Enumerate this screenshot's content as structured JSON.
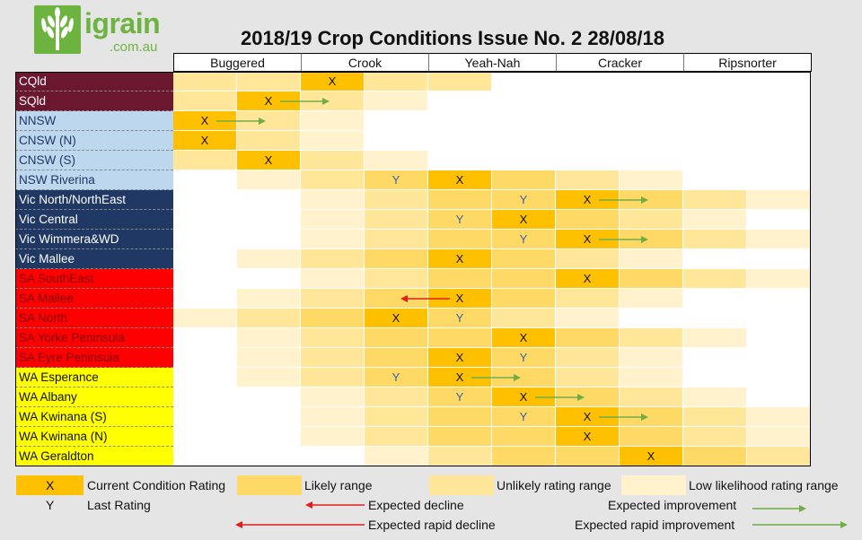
{
  "logo": {
    "name": "igrain",
    "sub": ".com.au"
  },
  "chart_data": {
    "type": "table",
    "title": "2018/19 Crop Conditions Issue No. 2 28/08/18",
    "categories": [
      "Buggered",
      "Crook",
      "Yeah-Nah",
      "Cracker",
      "Ripsnorter"
    ],
    "subcolumns_per_category": 2,
    "shade_levels": {
      "0": "none",
      "1": "Low likelihood rating range",
      "2": "Unlikely rating range",
      "3": "Likely range",
      "4": "Current Condition Rating"
    },
    "rows": [
      {
        "region": "CQld",
        "group": "QLD",
        "shades": [
          2,
          2,
          4,
          2,
          2,
          0,
          0,
          0,
          0,
          0
        ],
        "current": 2,
        "last": null,
        "arrow": null
      },
      {
        "region": "SQld",
        "group": "QLD",
        "shades": [
          2,
          4,
          2,
          1,
          0,
          0,
          0,
          0,
          0,
          0
        ],
        "current": 1,
        "last": null,
        "arrow": {
          "type": "improvement",
          "from": 1,
          "to": 2
        }
      },
      {
        "region": "NNSW",
        "group": "NSW",
        "shades": [
          4,
          2,
          1,
          0,
          0,
          0,
          0,
          0,
          0,
          0
        ],
        "current": 0,
        "last": null,
        "arrow": {
          "type": "improvement",
          "from": 0,
          "to": 1
        }
      },
      {
        "region": "CNSW (N)",
        "group": "NSW",
        "shades": [
          4,
          2,
          1,
          0,
          0,
          0,
          0,
          0,
          0,
          0
        ],
        "current": 0,
        "last": null,
        "arrow": null
      },
      {
        "region": "CNSW (S)",
        "group": "NSW",
        "shades": [
          2,
          4,
          2,
          1,
          0,
          0,
          0,
          0,
          0,
          0
        ],
        "current": 1,
        "last": null,
        "arrow": null
      },
      {
        "region": "NSW Riverina",
        "group": "NSW",
        "shades": [
          0,
          1,
          2,
          3,
          4,
          3,
          2,
          1,
          0,
          0
        ],
        "current": 4,
        "last": 3,
        "arrow": null
      },
      {
        "region": "Vic North/NorthEast",
        "group": "VIC",
        "shades": [
          0,
          0,
          1,
          2,
          3,
          3,
          4,
          3,
          2,
          1
        ],
        "current": 6,
        "last": 5,
        "arrow": {
          "type": "improvement",
          "from": 6,
          "to": 7
        }
      },
      {
        "region": "Vic Central",
        "group": "VIC",
        "shades": [
          0,
          0,
          1,
          2,
          3,
          4,
          3,
          2,
          1,
          0
        ],
        "current": 5,
        "last": 4,
        "arrow": null
      },
      {
        "region": "Vic Wimmera&WD",
        "group": "VIC",
        "shades": [
          0,
          0,
          1,
          2,
          3,
          3,
          4,
          3,
          2,
          1
        ],
        "current": 6,
        "last": 5,
        "arrow": {
          "type": "improvement",
          "from": 6,
          "to": 7
        }
      },
      {
        "region": "Vic Mallee",
        "group": "VIC",
        "shades": [
          0,
          1,
          2,
          3,
          4,
          3,
          2,
          1,
          0,
          0
        ],
        "current": 4,
        "last": null,
        "arrow": null
      },
      {
        "region": "SA SouthEast",
        "group": "SA",
        "shades": [
          0,
          0,
          1,
          2,
          3,
          3,
          4,
          3,
          2,
          1
        ],
        "current": 6,
        "last": null,
        "arrow": null
      },
      {
        "region": "SA Mallee",
        "group": "SA",
        "shades": [
          0,
          1,
          2,
          3,
          4,
          3,
          2,
          1,
          0,
          0
        ],
        "current": 4,
        "last": null,
        "arrow": {
          "type": "decline",
          "from": 4,
          "to": 3
        }
      },
      {
        "region": "SA North",
        "group": "SA",
        "shades": [
          1,
          2,
          3,
          4,
          3,
          2,
          1,
          0,
          0,
          0
        ],
        "current": 3,
        "last": 4,
        "arrow": null
      },
      {
        "region": "SA Yorke Peninsula",
        "group": "SA",
        "shades": [
          0,
          1,
          2,
          3,
          3,
          4,
          3,
          2,
          1,
          0
        ],
        "current": 5,
        "last": null,
        "arrow": null
      },
      {
        "region": "SA Eyre Peninsula",
        "group": "SA",
        "shades": [
          0,
          1,
          2,
          3,
          4,
          3,
          2,
          1,
          0,
          0
        ],
        "current": 4,
        "last": 5,
        "arrow": null
      },
      {
        "region": "WA Esperance",
        "group": "WA",
        "shades": [
          0,
          1,
          2,
          3,
          4,
          3,
          2,
          1,
          0,
          0
        ],
        "current": 4,
        "last": 3,
        "arrow": {
          "type": "improvement",
          "from": 4,
          "to": 5
        }
      },
      {
        "region": "WA Albany",
        "group": "WA",
        "shades": [
          0,
          0,
          1,
          2,
          3,
          4,
          3,
          2,
          1,
          0
        ],
        "current": 5,
        "last": 4,
        "arrow": {
          "type": "improvement",
          "from": 5,
          "to": 6
        }
      },
      {
        "region": "WA Kwinana (S)",
        "group": "WA",
        "shades": [
          0,
          0,
          1,
          2,
          3,
          3,
          4,
          3,
          2,
          1
        ],
        "current": 6,
        "last": 5,
        "arrow": {
          "type": "improvement",
          "from": 6,
          "to": 7
        }
      },
      {
        "region": "WA Kwinana (N)",
        "group": "WA",
        "shades": [
          0,
          0,
          1,
          2,
          3,
          3,
          4,
          3,
          2,
          1
        ],
        "current": 6,
        "last": null,
        "arrow": null
      },
      {
        "region": "WA Geraldton",
        "group": "WA",
        "shades": [
          0,
          0,
          0,
          1,
          2,
          3,
          3,
          4,
          3,
          2
        ],
        "current": 7,
        "last": null,
        "arrow": null
      }
    ],
    "group_colors": {
      "QLD": "#6b1730",
      "NSW": "#bdd7ee",
      "VIC": "#1f3864",
      "SA": "#ff0000",
      "WA": "#ffff00"
    },
    "group_text_colors": {
      "QLD": "#ffffff",
      "NSW": "#1f3864",
      "VIC": "#ffffff",
      "SA": "#7f0000",
      "WA": "#111111"
    },
    "shade_colors": {
      "0": "#ffffff",
      "1": "#fff2cc",
      "2": "#ffe699",
      "3": "#ffd966",
      "4": "#ffc000"
    }
  },
  "marks": {
    "current": "X",
    "last": "Y"
  },
  "legend": {
    "current_mark": "X",
    "current_label": "Current Condition Rating",
    "likely_label": "Likely range",
    "unlikely_label": "Unlikely rating range",
    "low_label": "Low likelihood rating range",
    "last_mark": "Y",
    "last_label": "Last Rating",
    "decline_label": "Expected decline",
    "rapid_decline_label": "Expected rapid decline",
    "improvement_label": "Expected improvement",
    "rapid_improvement_label": "Expected rapid improvement"
  },
  "colors": {
    "decline": "#e31b1b",
    "improvement": "#70ad47"
  }
}
